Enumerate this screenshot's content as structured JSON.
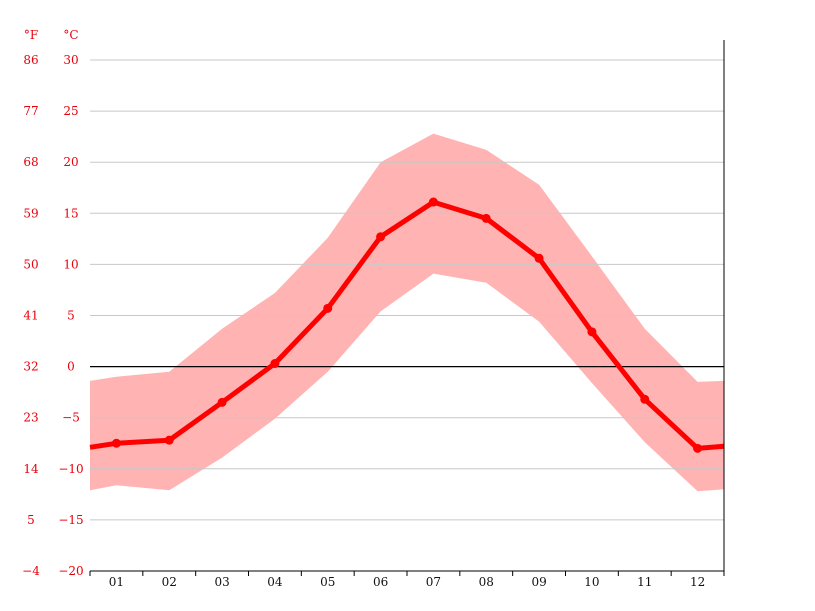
{
  "chart_data": {
    "type": "line",
    "title": "",
    "unit_f": "°F",
    "unit_c": "°C",
    "x_labels": [
      "01",
      "02",
      "03",
      "04",
      "05",
      "06",
      "07",
      "08",
      "09",
      "10",
      "11",
      "12"
    ],
    "y_c_ticks": [
      "30",
      "25",
      "20",
      "15",
      "10",
      "5",
      "0",
      "−5",
      "−10",
      "−15",
      "−20"
    ],
    "y_f_ticks": [
      "86",
      "77",
      "68",
      "59",
      "50",
      "41",
      "32",
      "23",
      "14",
      "5",
      "−4"
    ],
    "ylim": [
      -20,
      30
    ],
    "x_range": [
      0.5,
      12.5
    ],
    "grid": true,
    "colors": {
      "line": "#ff0000",
      "band": "#ffb3b3",
      "tick_text": "#e8000b",
      "zero_line": "#000000",
      "grid": "#c8c8c8"
    },
    "series": [
      {
        "values": [
          -7.5,
          -7.2,
          -3.5,
          0.3,
          5.7,
          12.7,
          16.1,
          14.5,
          10.6,
          3.4,
          -3.2,
          -8.0
        ]
      },
      {
        "values": [
          -1.0,
          -0.5,
          3.7,
          7.2,
          12.6,
          20.0,
          22.8,
          21.2,
          17.8,
          10.8,
          3.7,
          -1.5
        ]
      },
      {
        "values": [
          -11.6,
          -12.1,
          -8.9,
          -5.1,
          -0.5,
          5.4,
          9.1,
          8.2,
          4.4,
          -1.6,
          -7.4,
          -12.2
        ]
      }
    ],
    "edge_values": {
      "line": [
        -7.9,
        -7.8
      ],
      "upper": [
        -1.4,
        -1.4
      ],
      "lower": [
        -12.1,
        -12.0
      ]
    }
  }
}
